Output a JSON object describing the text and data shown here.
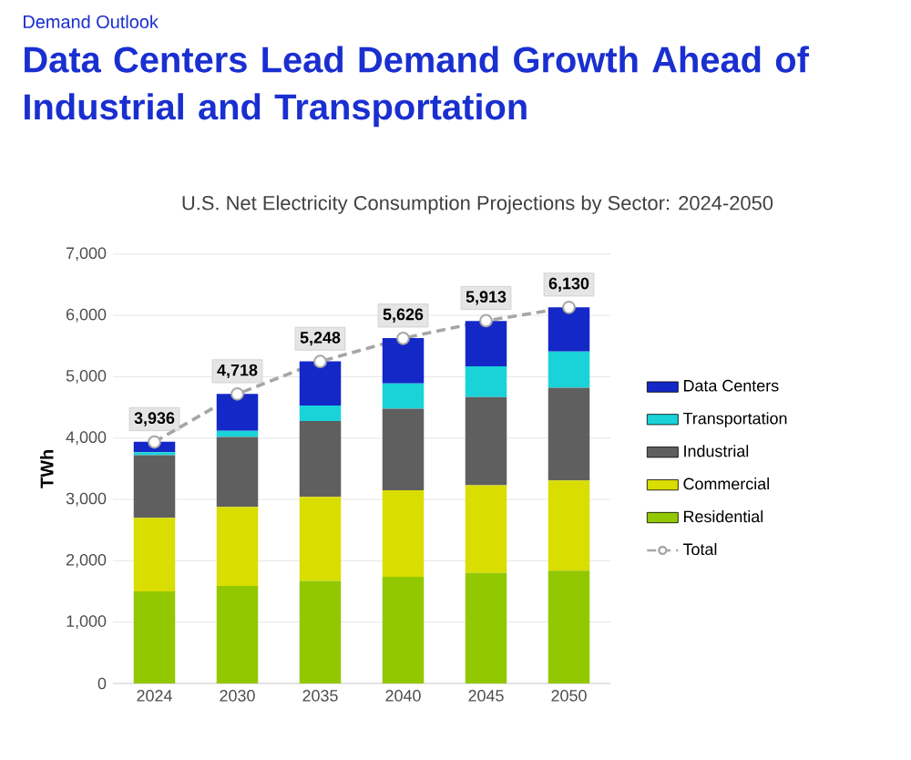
{
  "chart_data": {
    "type": "bar",
    "stacked": true,
    "annotations": [
      "Demand Outlook"
    ],
    "title": "Data Centers Lead Demand Growth Ahead of Industrial and Transportation",
    "subtitle": "U.S. Net Electricity Consumption Projections by Sector: 2024-2050",
    "ylabel": "TWh",
    "categories": [
      "2024",
      "2030",
      "2035",
      "2040",
      "2045",
      "2050"
    ],
    "series": [
      {
        "name": "Residential",
        "color": "#92c800",
        "values": [
          1500,
          1590,
          1670,
          1740,
          1800,
          1840
        ]
      },
      {
        "name": "Commercial",
        "color": "#d9dd00",
        "values": [
          1200,
          1290,
          1370,
          1410,
          1430,
          1470
        ]
      },
      {
        "name": "Industrial",
        "color": "#5f5f5f",
        "values": [
          1020,
          1140,
          1240,
          1330,
          1440,
          1510
        ]
      },
      {
        "name": "Transportation",
        "color": "#19d3d9",
        "values": [
          50,
          100,
          250,
          410,
          500,
          590
        ]
      },
      {
        "name": "Data Centers",
        "color": "#1428c8",
        "values": [
          170,
          600,
          720,
          740,
          740,
          720
        ]
      },
      {
        "name": "Total",
        "type": "line",
        "color": "#a6a6a6",
        "marker": "circle",
        "line_style": "dashed",
        "values": [
          3936,
          4718,
          5248,
          5626,
          5913,
          6130
        ],
        "value_labels": [
          "3,936",
          "4,718",
          "5,248",
          "5,626",
          "5,913",
          "6,130"
        ]
      }
    ],
    "ylim": [
      0,
      7000
    ],
    "yticks": [
      {
        "value": 0,
        "label": "0"
      },
      {
        "value": 1000,
        "label": "1,000"
      },
      {
        "value": 2000,
        "label": "2,000"
      },
      {
        "value": 3000,
        "label": "3,000"
      },
      {
        "value": 4000,
        "label": "4,000"
      },
      {
        "value": 5000,
        "label": "5,000"
      },
      {
        "value": 6000,
        "label": "6,000"
      },
      {
        "value": 7000,
        "label": "7,000"
      }
    ],
    "grid": "y",
    "legend": "right"
  }
}
